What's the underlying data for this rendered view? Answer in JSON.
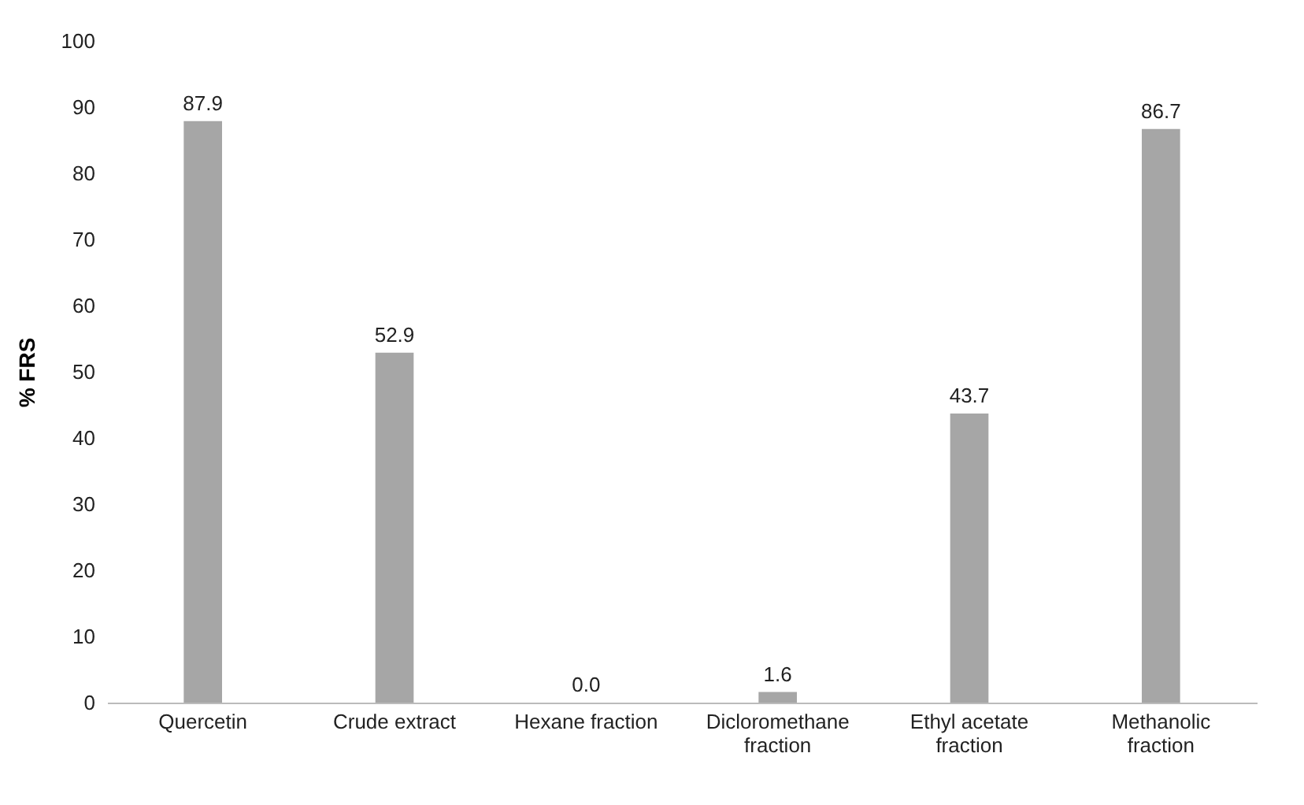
{
  "chart_data": {
    "type": "bar",
    "ylabel": "% FRS",
    "categories": [
      "Quercetin",
      "Crude extract",
      "Hexane fraction",
      "Dicloromethane fraction",
      "Ethyl acetate fraction",
      "Methanolic fraction"
    ],
    "values": [
      87.9,
      52.9,
      0.0,
      1.6,
      43.7,
      86.7
    ],
    "value_labels": [
      "87.9",
      "52.9",
      "0.0",
      "1.6",
      "43.7",
      "86.7"
    ],
    "color": "#a6a6a6",
    "ylim": [
      0,
      100
    ],
    "yticks": [
      0,
      10,
      20,
      30,
      40,
      50,
      60,
      70,
      80,
      90,
      100
    ],
    "grid": false
  }
}
